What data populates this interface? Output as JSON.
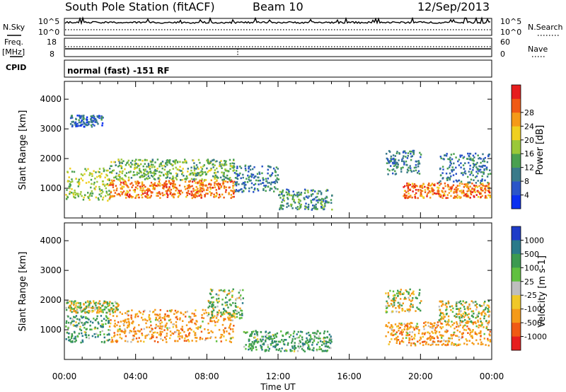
{
  "header": {
    "station": "South Pole Station (fitACF)",
    "beam": "Beam 10",
    "date": "12/Sep/2013"
  },
  "panels": {
    "nsky": {
      "left_label": "N.Sky",
      "right_label": "N.Search",
      "left_ticks": [
        "10^5",
        "10^0"
      ],
      "right_ticks": [
        "10^5",
        "10^0"
      ]
    },
    "freq": {
      "left_label_1": "Freq.",
      "left_label_2": "[MHz]",
      "right_label": "Nave",
      "left_ticks": [
        "18",
        "8"
      ],
      "right_ticks": [
        "60",
        "0"
      ]
    },
    "cpid": {
      "label": "CPID",
      "mode_text": "normal (fast) -151 RF"
    }
  },
  "chart_data": [
    {
      "type": "heatmap",
      "title": "",
      "quantity": "Power",
      "xlabel": "",
      "ylabel": "Slant Range [km]",
      "x_ticks": [
        "00:00",
        "04:00",
        "08:00",
        "12:00",
        "16:00",
        "20:00",
        "00:00"
      ],
      "y_ticks": [
        1000,
        2000,
        3000,
        4000
      ],
      "ylim": [
        0,
        4600
      ],
      "colorbar": {
        "label": "Power [dB]",
        "ticks": [
          "4",
          "8",
          "12",
          "16",
          "20",
          "24",
          "28"
        ],
        "colors": [
          "#0a2ff0",
          "#2a55c8",
          "#3a7a8a",
          "#4aa050",
          "#9ac838",
          "#f0d020",
          "#f59a18",
          "#f05a14",
          "#e61e1e"
        ]
      },
      "regions": [
        {
          "t0": 0.0,
          "t1": 2.5,
          "r0": 600,
          "r1": 1700,
          "value": 16
        },
        {
          "t0": 0.3,
          "t1": 2.2,
          "r0": 3100,
          "r1": 3500,
          "value": 6
        },
        {
          "t0": 2.5,
          "t1": 9.5,
          "r0": 700,
          "r1": 1300,
          "value": 26
        },
        {
          "t0": 2.5,
          "t1": 9.5,
          "r0": 1300,
          "r1": 2000,
          "value": 14
        },
        {
          "t0": 9.5,
          "t1": 12.0,
          "r0": 900,
          "r1": 1800,
          "value": 8
        },
        {
          "t0": 12.0,
          "t1": 15.0,
          "r0": 300,
          "r1": 1000,
          "value": 10
        },
        {
          "t0": 18.0,
          "t1": 20.0,
          "r0": 1500,
          "r1": 2300,
          "value": 8
        },
        {
          "t0": 19.0,
          "t1": 24.0,
          "r0": 700,
          "r1": 1200,
          "value": 26
        },
        {
          "t0": 21.0,
          "t1": 24.0,
          "r0": 1200,
          "r1": 2200,
          "value": 8
        }
      ]
    },
    {
      "type": "heatmap",
      "title": "",
      "quantity": "Velocity",
      "xlabel": "Time UT",
      "ylabel": "Slant Range [km]",
      "x_ticks": [
        "00:00",
        "04:00",
        "08:00",
        "12:00",
        "16:00",
        "20:00",
        "00:00"
      ],
      "y_ticks": [
        1000,
        2000,
        3000,
        4000
      ],
      "ylim": [
        0,
        4600
      ],
      "colorbar": {
        "label": "Velocity [m s-1]",
        "ticks": [
          "1000",
          "500",
          "100",
          "25",
          "-25",
          "-100",
          "-500",
          "-1000"
        ],
        "colors": [
          "#1e3cc8",
          "#2a7a8a",
          "#3c9a50",
          "#60c040",
          "#bebebe",
          "#f0c828",
          "#f59a18",
          "#f05a14",
          "#e61e1e"
        ]
      },
      "regions": [
        {
          "t0": 0.0,
          "t1": 2.5,
          "r0": 600,
          "r1": 1500,
          "value": 300
        },
        {
          "t0": 0.0,
          "t1": 3.0,
          "r0": 1600,
          "r1": 2000,
          "value": 0
        },
        {
          "t0": 2.5,
          "t1": 9.5,
          "r0": 600,
          "r1": 1700,
          "value": -300
        },
        {
          "t0": 8.0,
          "t1": 10.0,
          "r0": 1400,
          "r1": 2400,
          "value": 200
        },
        {
          "t0": 10.0,
          "t1": 15.0,
          "r0": 300,
          "r1": 1000,
          "value": 300
        },
        {
          "t0": 18.0,
          "t1": 20.0,
          "r0": 1600,
          "r1": 2400,
          "value": 0
        },
        {
          "t0": 18.0,
          "t1": 24.0,
          "r0": 500,
          "r1": 1300,
          "value": -300
        },
        {
          "t0": 21.0,
          "t1": 24.0,
          "r0": 1300,
          "r1": 2000,
          "value": 0
        }
      ]
    }
  ]
}
